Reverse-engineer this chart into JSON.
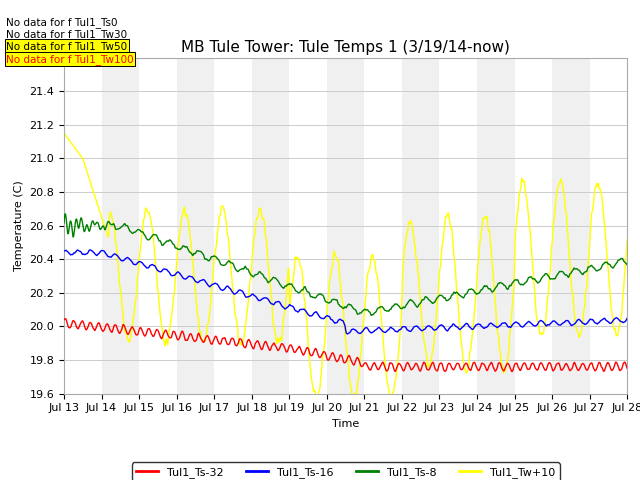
{
  "title": "MB Tule Tower: Tule Temps 1 (3/19/14-now)",
  "xlabel": "Time",
  "ylabel": "Temperature (C)",
  "ylim": [
    19.6,
    21.6
  ],
  "x_tick_labels": [
    "Jul 13",
    "Jul 14",
    "Jul 15",
    "Jul 16",
    "Jul 17",
    "Jul 18",
    "Jul 19",
    "Jul 20",
    "Jul 21",
    "Jul 22",
    "Jul 23",
    "Jul 24",
    "Jul 25",
    "Jul 26",
    "Jul 27",
    "Jul 28"
  ],
  "legend_labels": [
    "Tul1_Ts-32",
    "Tul1_Ts-16",
    "Tul1_Ts-8",
    "Tul1_Tw+10"
  ],
  "colors": [
    "red",
    "blue",
    "green",
    "yellow"
  ],
  "no_data_text": [
    "No data for f Tul1_Ts0",
    "No data for f Tul1_Tw30",
    "No data for f Tul1_Tw50",
    "No data for f Tul1_Tw100"
  ],
  "background_color": "#ffffff",
  "title_fontsize": 11,
  "tick_fontsize": 8,
  "legend_fontsize": 8
}
